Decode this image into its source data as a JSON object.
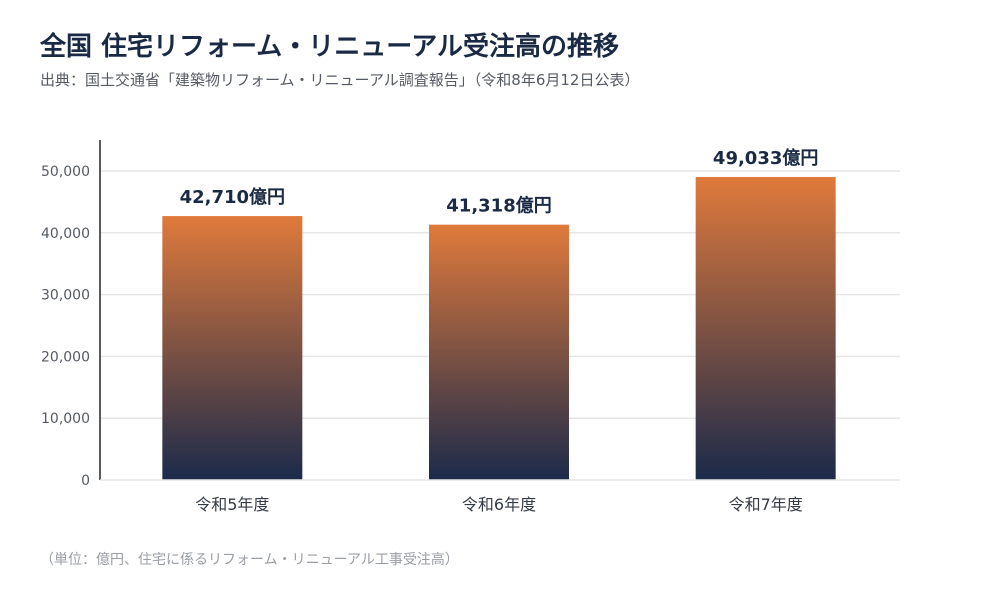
{
  "header": {
    "title": "全国 住宅リフォーム・リニューアル受注高の推移",
    "source": "出典：国土交通省「建築物リフォーム・リニューアル調査報告」（令和8年6月12日公表）"
  },
  "footer": {
    "note": "（単位：億円、住宅に係るリフォーム・リニューアル工事受注高）"
  },
  "colors": {
    "bar_top": "#e07a3c",
    "bar_bottom": "#1b2a4a",
    "axis": "#222222",
    "grid": "#e6e6e6"
  },
  "chart_data": {
    "type": "bar",
    "categories": [
      "令和5年度",
      "令和6年度",
      "令和7年度"
    ],
    "values": [
      42710,
      41318,
      49033
    ],
    "value_labels": [
      "42,710億円",
      "41,318億円",
      "49,033億円"
    ],
    "yticks": [
      0,
      10000,
      20000,
      30000,
      40000,
      50000
    ],
    "ytick_labels": [
      "0",
      "10,000",
      "20,000",
      "30,000",
      "40,000",
      "50,000"
    ],
    "ylim": [
      0,
      50000
    ],
    "grid": true,
    "legend": "none"
  }
}
